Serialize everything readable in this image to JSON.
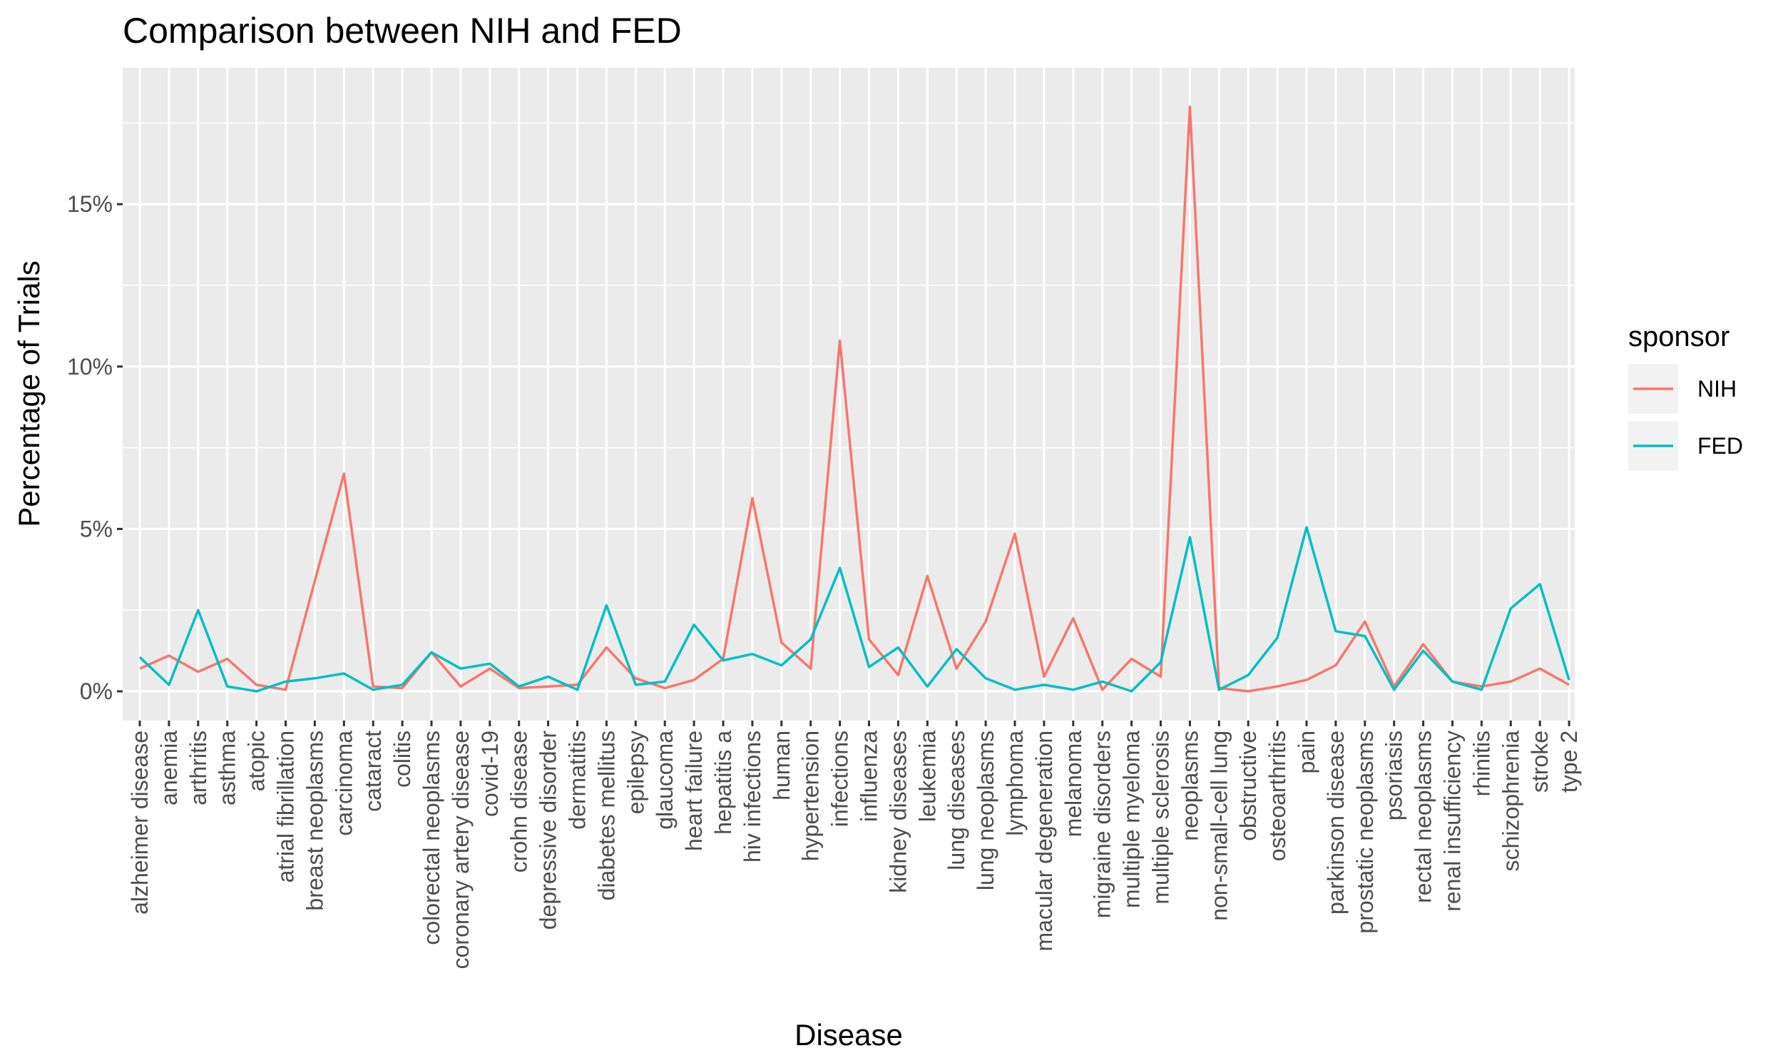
{
  "chart_data": {
    "type": "line",
    "title": "Comparison between NIH and FED",
    "xlabel": "Disease",
    "ylabel": "Percentage of Trials",
    "ylim": [
      -0.9,
      19.2
    ],
    "yticks": [
      0,
      5,
      10,
      15
    ],
    "ytick_labels": [
      "0%",
      "5%",
      "10%",
      "15%"
    ],
    "grid": true,
    "legend": {
      "title": "sponsor",
      "position": "right"
    },
    "categories": [
      "alzheimer disease",
      "anemia",
      "arthritis",
      "asthma",
      "atopic",
      "atrial fibrillation",
      "breast neoplasms",
      "carcinoma",
      "cataract",
      "colitis",
      "colorectal neoplasms",
      "coronary artery disease",
      "covid-19",
      "crohn disease",
      "depressive disorder",
      "dermatitis",
      "diabetes mellitus",
      "epilepsy",
      "glaucoma",
      "heart failure",
      "hepatitis a",
      "hiv infections",
      "human",
      "hypertension",
      "infections",
      "influenza",
      "kidney diseases",
      "leukemia",
      "lung diseases",
      "lung neoplasms",
      "lymphoma",
      "macular degeneration",
      "melanoma",
      "migraine disorders",
      "multiple myeloma",
      "multiple sclerosis",
      "neoplasms",
      "non-small-cell lung",
      "obstructive",
      "osteoarthritis",
      "pain",
      "parkinson disease",
      "prostatic neoplasms",
      "psoriasis",
      "rectal neoplasms",
      "renal insufficiency",
      "rhinitis",
      "schizophrenia",
      "stroke",
      "type 2"
    ],
    "series": [
      {
        "name": "NIH",
        "color": "#F8766D",
        "values": [
          0.7,
          1.1,
          0.6,
          1.0,
          0.2,
          0.05,
          3.4,
          6.7,
          0.15,
          0.1,
          1.2,
          0.15,
          0.7,
          0.1,
          0.15,
          0.2,
          1.35,
          0.4,
          0.1,
          0.35,
          1.0,
          5.95,
          1.5,
          0.7,
          10.8,
          1.6,
          0.5,
          3.55,
          0.7,
          2.15,
          4.85,
          0.45,
          2.25,
          0.05,
          1.0,
          0.45,
          18.0,
          0.1,
          0.0,
          0.15,
          0.35,
          0.8,
          2.15,
          0.15,
          1.45,
          0.3,
          0.15,
          0.3,
          0.7,
          0.2
        ]
      },
      {
        "name": "FED",
        "color": "#00BFC4",
        "values": [
          1.05,
          0.2,
          2.5,
          0.15,
          0.0,
          0.3,
          0.4,
          0.55,
          0.05,
          0.2,
          1.2,
          0.7,
          0.85,
          0.15,
          0.45,
          0.05,
          2.65,
          0.2,
          0.3,
          2.05,
          0.95,
          1.15,
          0.8,
          1.6,
          3.8,
          0.75,
          1.35,
          0.15,
          1.3,
          0.4,
          0.05,
          0.2,
          0.05,
          0.3,
          0.0,
          0.9,
          4.75,
          0.05,
          0.5,
          1.65,
          5.05,
          1.85,
          1.7,
          0.05,
          1.25,
          0.3,
          0.05,
          2.55,
          3.3,
          0.35
        ]
      }
    ]
  }
}
